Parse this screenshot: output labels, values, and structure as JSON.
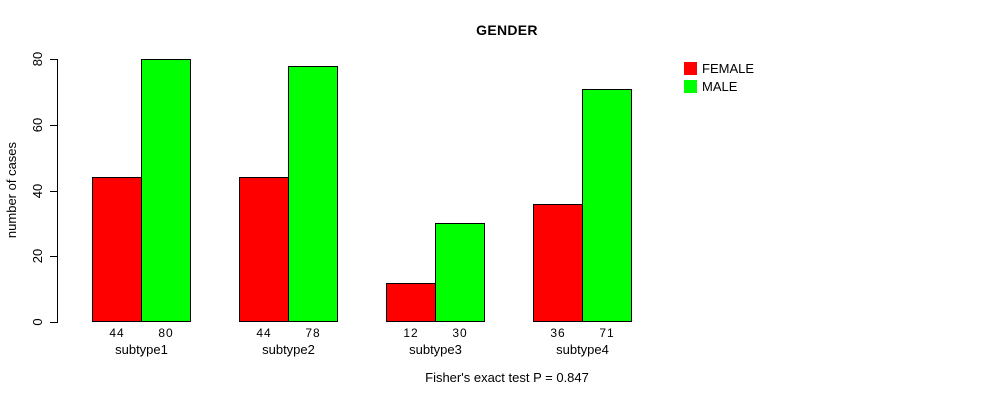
{
  "title": "GENDER",
  "y_axis": {
    "label": "number of cases",
    "ticks": [
      0,
      20,
      40,
      60,
      80
    ]
  },
  "footer": "Fisher's exact test P = 0.847",
  "legend": {
    "items": [
      {
        "label": "FEMALE",
        "color": "#ff0000"
      },
      {
        "label": "MALE",
        "color": "#00ff00"
      }
    ]
  },
  "chart_data": {
    "type": "bar",
    "title": "GENDER",
    "categories": [
      "subtype1",
      "subtype2",
      "subtype3",
      "subtype4"
    ],
    "series": [
      {
        "name": "FEMALE",
        "color": "#ff0000",
        "values": [
          44,
          44,
          12,
          36
        ]
      },
      {
        "name": "MALE",
        "color": "#00ff00",
        "values": [
          80,
          78,
          30,
          71
        ]
      }
    ],
    "xlabel": "",
    "ylabel": "number of cases",
    "ylim": [
      0,
      80
    ],
    "yticks": [
      0,
      20,
      40,
      60,
      80
    ],
    "grid": false,
    "bar_border_color": "#000000",
    "value_labels_shown": true,
    "legend_position": "right-of-plot-top",
    "annotation": "Fisher's exact test P = 0.847"
  }
}
